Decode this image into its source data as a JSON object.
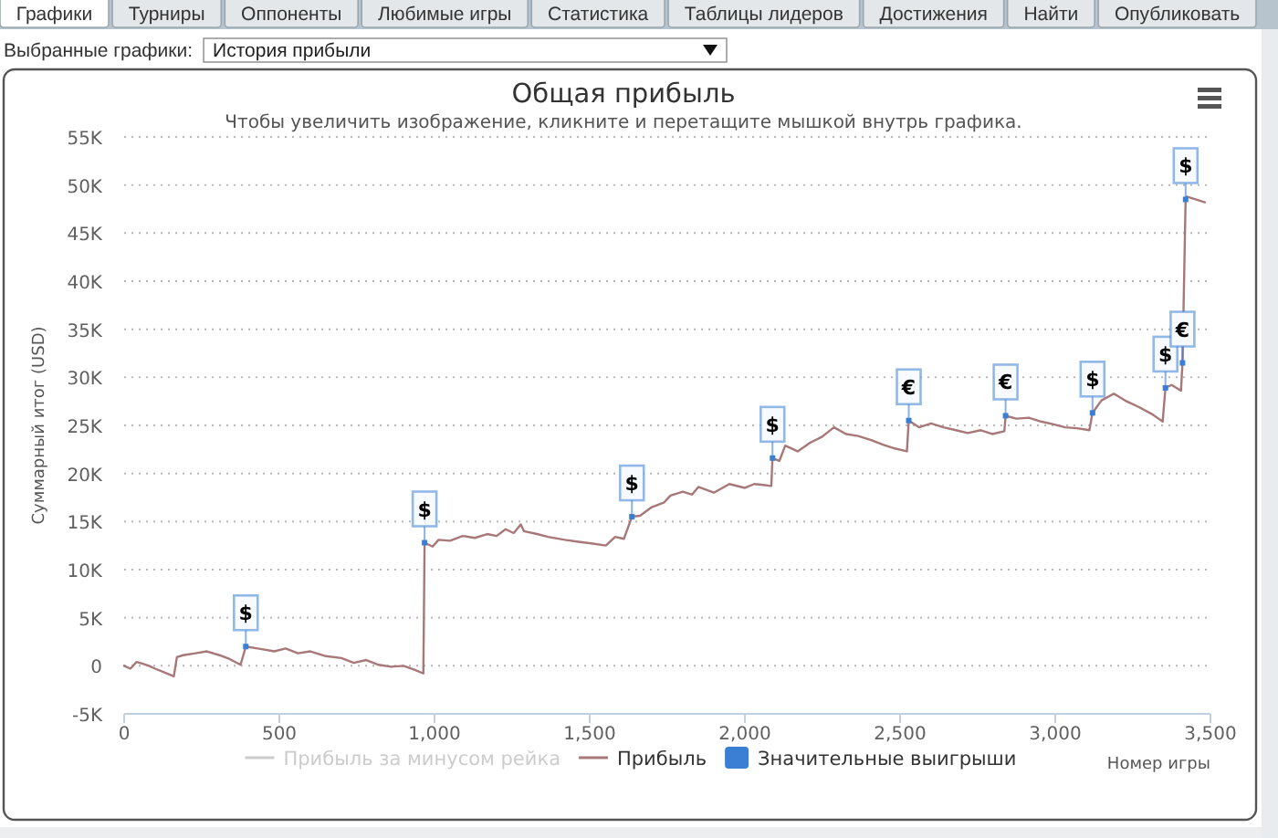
{
  "chart_data": {
    "type": "line",
    "title": "Общая прибыль",
    "subtitle": "Чтобы увеличить изображение, кликните и перетащите мышкой внутрь графика.",
    "xlabel": "Номер игры",
    "ylabel": "Суммарный итог (USD)",
    "annotations": [
      "Графики",
      "Турниры",
      "Оппоненты",
      "Любимые игры",
      "Статистика",
      "Таблицы лидеров",
      "Достижения",
      "Найти",
      "Опубликовать",
      "Выбранные графики:",
      "История прибыли"
    ],
    "xlim": [
      0,
      3500
    ],
    "xticks": [
      0,
      500,
      {
        "value": 1000,
        "label": "1,000"
      },
      {
        "value": 1500,
        "label": "1,500"
      },
      {
        "value": 2000,
        "label": "2,000"
      },
      {
        "value": 2500,
        "label": "2,500"
      },
      {
        "value": 3000,
        "label": "3,000"
      },
      {
        "value": 3500,
        "label": "3,500"
      }
    ],
    "ylim": [
      -5000,
      55000
    ],
    "yticks": [
      {
        "value": -5000,
        "label": "-5K"
      },
      0,
      {
        "value": 5000,
        "label": "5K"
      },
      {
        "value": 10000,
        "label": "10K"
      },
      {
        "value": 15000,
        "label": "15K"
      },
      {
        "value": 20000,
        "label": "20K"
      },
      {
        "value": 25000,
        "label": "25K"
      },
      {
        "value": 30000,
        "label": "30K"
      },
      {
        "value": 35000,
        "label": "35K"
      },
      {
        "value": 40000,
        "label": "40K"
      },
      {
        "value": 45000,
        "label": "45K"
      },
      {
        "value": 50000,
        "label": "50K"
      },
      {
        "value": 55000,
        "label": "55K"
      }
    ],
    "grid": "y",
    "legend": "bottom",
    "series": [
      {
        "name": "Прибыль за минусом рейка",
        "color": "#cccccc"
      },
      {
        "name": "Прибыль",
        "color": "#a87878",
        "x": [
          0,
          20,
          40,
          60,
          80,
          100,
          130,
          160,
          170,
          190,
          230,
          267,
          307,
          340,
          375,
          392,
          430,
          484,
          520,
          560,
          600,
          650,
          700,
          740,
          780,
          820,
          860,
          900,
          935,
          964,
          968,
          994,
          1013,
          1050,
          1091,
          1130,
          1170,
          1200,
          1229,
          1255,
          1278,
          1288,
          1330,
          1366,
          1420,
          1464,
          1510,
          1552,
          1582,
          1610,
          1636,
          1662,
          1700,
          1740,
          1760,
          1800,
          1830,
          1850,
          1900,
          1950,
          2000,
          2030,
          2060,
          2085,
          2089,
          2111,
          2130,
          2170,
          2210,
          2248,
          2287,
          2326,
          2365,
          2405,
          2445,
          2483,
          2522,
          2528,
          2561,
          2600,
          2640,
          2680,
          2718,
          2760,
          2797,
          2836,
          2840,
          2875,
          2915,
          2954,
          2995,
          3032,
          3070,
          3110,
          3120,
          3149,
          3189,
          3230,
          3270,
          3310,
          3346,
          3355,
          3375,
          3405,
          3410,
          3420,
          3424,
          3482
        ],
        "values": [
          0,
          -300,
          400,
          200,
          0,
          -300,
          -700,
          -1100,
          900,
          1100,
          1300,
          1500,
          1100,
          700,
          100,
          2000,
          1800,
          1500,
          1800,
          1300,
          1500,
          1000,
          800,
          300,
          600,
          100,
          -100,
          0,
          -400,
          -800,
          12800,
          12400,
          13100,
          13000,
          13500,
          13300,
          13700,
          13500,
          14200,
          13800,
          14700,
          14000,
          13700,
          13400,
          13100,
          12900,
          12700,
          12500,
          13400,
          13200,
          15500,
          15600,
          16500,
          17000,
          17700,
          18100,
          17800,
          18600,
          18000,
          18900,
          18500,
          18900,
          18800,
          18700,
          21600,
          21300,
          22900,
          22300,
          23200,
          23800,
          24800,
          24100,
          23900,
          23500,
          23000,
          22600,
          22300,
          25500,
          24800,
          25200,
          24800,
          24500,
          24200,
          24500,
          24100,
          24400,
          26000,
          25700,
          25800,
          25400,
          25100,
          24800,
          24700,
          24500,
          26300,
          27600,
          28300,
          27500,
          26900,
          26200,
          25400,
          28900,
          29200,
          28600,
          31500,
          48500,
          48800,
          48200
        ]
      },
      {
        "name": "Значительные выигрыши",
        "type": "scatter",
        "color": "#3b7fd4",
        "x": [
          392,
          968,
          1636,
          2089,
          2528,
          2840,
          3120,
          3355,
          3410,
          3420
        ],
        "values": [
          2000,
          12800,
          15500,
          21600,
          25500,
          26000,
          26300,
          28900,
          31500,
          48500
        ],
        "value_labels": [
          "$",
          "$",
          "$",
          "$",
          "€",
          "€",
          "$",
          "$",
          "€",
          "$"
        ]
      }
    ]
  }
}
